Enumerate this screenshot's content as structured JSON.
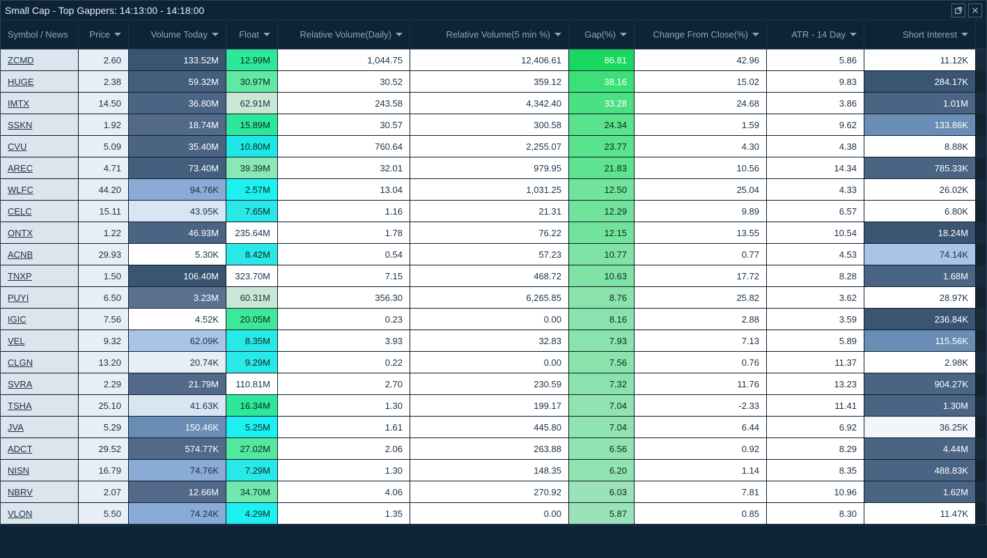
{
  "title": "Small Cap - Top Gappers: 14:13:00 - 14:18:00",
  "columns": [
    {
      "key": "symbol",
      "label": "Symbol / News",
      "align": "left",
      "sort": false
    },
    {
      "key": "price",
      "label": "Price",
      "align": "right",
      "sort": true
    },
    {
      "key": "volume",
      "label": "Volume Today",
      "align": "right",
      "sort": true
    },
    {
      "key": "float",
      "label": "Float",
      "align": "right",
      "sort": true
    },
    {
      "key": "relvol_d",
      "label": "Relative Volume(Daily)",
      "align": "right",
      "sort": true
    },
    {
      "key": "relvol_5",
      "label": "Relative Volume(5 min %)",
      "align": "right",
      "sort": true
    },
    {
      "key": "gap",
      "label": "Gap(%)",
      "align": "right",
      "sort": true
    },
    {
      "key": "change",
      "label": "Change From Close(%)",
      "align": "right",
      "sort": true
    },
    {
      "key": "atr",
      "label": "ATR - 14 Day",
      "align": "right",
      "sort": true
    },
    {
      "key": "short",
      "label": "Short Interest",
      "align": "right",
      "sort": true
    }
  ],
  "colors": {
    "price_bg": "#e8eef5",
    "price_fg": "#1a3148",
    "relvol_bg": "#ffffff",
    "relvol_fg": "#1a3148",
    "change_bg": "#ffffff",
    "change_fg": "#1a3148",
    "atr_bg": "#ffffff",
    "atr_fg": "#1a3148"
  },
  "rows": [
    {
      "symbol": "ZCMD",
      "price": "2.60",
      "volume": "133.52M",
      "volume_bg": "#3a5572",
      "volume_fg": "#ffffff",
      "float": "12.99M",
      "float_bg": "#2de89a",
      "float_fg": "#0d2b1a",
      "relvol_d": "1,044.75",
      "relvol_5": "12,406.61",
      "gap": "86.81",
      "gap_bg": "#18d85f",
      "gap_fg": "#ffffff",
      "change": "42.96",
      "atr": "5.86",
      "short": "11.12K",
      "short_bg": "#ffffff",
      "short_fg": "#1a3148"
    },
    {
      "symbol": "HUGE",
      "price": "2.38",
      "volume": "59.32M",
      "volume_bg": "#435f7d",
      "volume_fg": "#ffffff",
      "float": "30.97M",
      "float_bg": "#62e8a5",
      "float_fg": "#0d2b1a",
      "relvol_d": "30.52",
      "relvol_5": "359.12",
      "gap": "38.16",
      "gap_bg": "#3de078",
      "gap_fg": "#ffffff",
      "change": "15.02",
      "atr": "9.83",
      "short": "284.17K",
      "short_bg": "#3a5572",
      "short_fg": "#ffffff"
    },
    {
      "symbol": "IMTX",
      "price": "14.50",
      "volume": "36.80M",
      "volume_bg": "#4a6483",
      "volume_fg": "#ffffff",
      "float": "62.91M",
      "float_bg": "#c8e8d5",
      "float_fg": "#1a3148",
      "relvol_d": "243.58",
      "relvol_5": "4,342.40",
      "gap": "33.28",
      "gap_bg": "#4be082",
      "gap_fg": "#ffffff",
      "change": "24.68",
      "atr": "3.86",
      "short": "1.01M",
      "short_bg": "#4a6483",
      "short_fg": "#ffffff"
    },
    {
      "symbol": "SSKN",
      "price": "1.92",
      "volume": "18.74M",
      "volume_bg": "#52698a",
      "volume_fg": "#ffffff",
      "float": "15.89M",
      "float_bg": "#2de89a",
      "float_fg": "#0d2b1a",
      "relvol_d": "30.57",
      "relvol_5": "300.58",
      "gap": "24.34",
      "gap_bg": "#58e38c",
      "gap_fg": "#0d2b1a",
      "change": "1.59",
      "atr": "9.62",
      "short": "133.86K",
      "short_bg": "#6a8db5",
      "short_fg": "#ffffff"
    },
    {
      "symbol": "CVU",
      "price": "5.09",
      "volume": "35.40M",
      "volume_bg": "#4a6483",
      "volume_fg": "#ffffff",
      "float": "10.80M",
      "float_bg": "#1ce8e8",
      "float_fg": "#0d2b1a",
      "relvol_d": "760.64",
      "relvol_5": "2,255.07",
      "gap": "23.77",
      "gap_bg": "#58e38c",
      "gap_fg": "#0d2b1a",
      "change": "4.30",
      "atr": "4.38",
      "short": "8.88K",
      "short_bg": "#ffffff",
      "short_fg": "#1a3148"
    },
    {
      "symbol": "AREC",
      "price": "4.71",
      "volume": "73.40M",
      "volume_bg": "#435f7d",
      "volume_fg": "#ffffff",
      "float": "39.39M",
      "float_bg": "#8ae8b8",
      "float_fg": "#0d2b1a",
      "relvol_d": "32.01",
      "relvol_5": "979.95",
      "gap": "21.83",
      "gap_bg": "#5ee390",
      "gap_fg": "#0d2b1a",
      "change": "10.56",
      "atr": "14.34",
      "short": "785.33K",
      "short_bg": "#4a6483",
      "short_fg": "#ffffff"
    },
    {
      "symbol": "WLFC",
      "price": "44.20",
      "volume": "94.76K",
      "volume_bg": "#8aabd5",
      "volume_fg": "#1a3148",
      "float": "2.57M",
      "float_bg": "#1cf0f0",
      "float_fg": "#0d2b1a",
      "relvol_d": "13.04",
      "relvol_5": "1,031.25",
      "gap": "12.50",
      "gap_bg": "#72e39d",
      "gap_fg": "#0d2b1a",
      "change": "25.04",
      "atr": "4.33",
      "short": "26.02K",
      "short_bg": "#ffffff",
      "short_fg": "#1a3148"
    },
    {
      "symbol": "CELC",
      "price": "15.11",
      "volume": "43.95K",
      "volume_bg": "#d8e5f2",
      "volume_fg": "#1a3148",
      "float": "7.65M",
      "float_bg": "#28e8e8",
      "float_fg": "#0d2b1a",
      "relvol_d": "1.16",
      "relvol_5": "21.31",
      "gap": "12.29",
      "gap_bg": "#72e39d",
      "gap_fg": "#0d2b1a",
      "change": "9.89",
      "atr": "6.57",
      "short": "6.80K",
      "short_bg": "#ffffff",
      "short_fg": "#1a3148"
    },
    {
      "symbol": "ONTX",
      "price": "1.22",
      "volume": "46.93M",
      "volume_bg": "#4a6483",
      "volume_fg": "#ffffff",
      "float": "235.64M",
      "float_bg": "#ffffff",
      "float_fg": "#1a3148",
      "relvol_d": "1.78",
      "relvol_5": "76.22",
      "gap": "12.15",
      "gap_bg": "#72e39d",
      "gap_fg": "#0d2b1a",
      "change": "13.55",
      "atr": "10.54",
      "short": "18.24M",
      "short_bg": "#3a5572",
      "short_fg": "#ffffff"
    },
    {
      "symbol": "ACNB",
      "price": "29.93",
      "volume": "5.30K",
      "volume_bg": "#ffffff",
      "volume_fg": "#1a3148",
      "float": "8.42M",
      "float_bg": "#28e8e8",
      "float_fg": "#0d2b1a",
      "relvol_d": "0.54",
      "relvol_5": "57.23",
      "gap": "10.77",
      "gap_bg": "#7ee3a5",
      "gap_fg": "#0d2b1a",
      "change": "0.77",
      "atr": "4.53",
      "short": "74.14K",
      "short_bg": "#a8c5e8",
      "short_fg": "#1a3148"
    },
    {
      "symbol": "TNXP",
      "price": "1.50",
      "volume": "106.40M",
      "volume_bg": "#3a5572",
      "volume_fg": "#ffffff",
      "float": "323.70M",
      "float_bg": "#ffffff",
      "float_fg": "#1a3148",
      "relvol_d": "7.15",
      "relvol_5": "468.72",
      "gap": "10.63",
      "gap_bg": "#7ee3a5",
      "gap_fg": "#0d2b1a",
      "change": "17.72",
      "atr": "8.28",
      "short": "1.68M",
      "short_bg": "#4a6483",
      "short_fg": "#ffffff"
    },
    {
      "symbol": "PUYI",
      "price": "6.50",
      "volume": "3.23M",
      "volume_bg": "#5a7290",
      "volume_fg": "#ffffff",
      "float": "60.31M",
      "float_bg": "#c8e8d5",
      "float_fg": "#1a3148",
      "relvol_d": "356.30",
      "relvol_5": "6,265.85",
      "gap": "8.76",
      "gap_bg": "#8ae3ad",
      "gap_fg": "#0d2b1a",
      "change": "25.82",
      "atr": "3.62",
      "short": "28.97K",
      "short_bg": "#ffffff",
      "short_fg": "#1a3148"
    },
    {
      "symbol": "IGIC",
      "price": "7.56",
      "volume": "4.52K",
      "volume_bg": "#ffffff",
      "volume_fg": "#1a3148",
      "float": "20.05M",
      "float_bg": "#3de89a",
      "float_fg": "#0d2b1a",
      "relvol_d": "0.23",
      "relvol_5": "0.00",
      "gap": "8.16",
      "gap_bg": "#8ae3ad",
      "gap_fg": "#0d2b1a",
      "change": "2.88",
      "atr": "3.59",
      "short": "236.84K",
      "short_bg": "#3a5572",
      "short_fg": "#ffffff"
    },
    {
      "symbol": "VEL",
      "price": "9.32",
      "volume": "62.09K",
      "volume_bg": "#a8c5e8",
      "volume_fg": "#1a3148",
      "float": "8.35M",
      "float_bg": "#28e8e8",
      "float_fg": "#0d2b1a",
      "relvol_d": "3.93",
      "relvol_5": "32.83",
      "gap": "7.93",
      "gap_bg": "#8ae3ad",
      "gap_fg": "#0d2b1a",
      "change": "7.13",
      "atr": "5.89",
      "short": "115.56K",
      "short_bg": "#6a8db5",
      "short_fg": "#ffffff"
    },
    {
      "symbol": "CLGN",
      "price": "13.20",
      "volume": "20.74K",
      "volume_bg": "#e8eef5",
      "volume_fg": "#1a3148",
      "float": "9.29M",
      "float_bg": "#28e8e8",
      "float_fg": "#0d2b1a",
      "relvol_d": "0.22",
      "relvol_5": "0.00",
      "gap": "7.56",
      "gap_bg": "#8ae3ad",
      "gap_fg": "#0d2b1a",
      "change": "0.76",
      "atr": "11.37",
      "short": "2.98K",
      "short_bg": "#ffffff",
      "short_fg": "#1a3148"
    },
    {
      "symbol": "SVRA",
      "price": "2.29",
      "volume": "21.79M",
      "volume_bg": "#52698a",
      "volume_fg": "#ffffff",
      "float": "110.81M",
      "float_bg": "#ffffff",
      "float_fg": "#1a3148",
      "relvol_d": "2.70",
      "relvol_5": "230.59",
      "gap": "7.32",
      "gap_bg": "#8ae3ad",
      "gap_fg": "#0d2b1a",
      "change": "11.76",
      "atr": "13.23",
      "short": "904.27K",
      "short_bg": "#4a6483",
      "short_fg": "#ffffff"
    },
    {
      "symbol": "TSHA",
      "price": "25.10",
      "volume": "41.63K",
      "volume_bg": "#d8e5f2",
      "volume_fg": "#1a3148",
      "float": "16.34M",
      "float_bg": "#2de89a",
      "float_fg": "#0d2b1a",
      "relvol_d": "1.30",
      "relvol_5": "199.17",
      "gap": "7.04",
      "gap_bg": "#92e3b2",
      "gap_fg": "#0d2b1a",
      "change": "-2.33",
      "atr": "11.41",
      "short": "1.30M",
      "short_bg": "#4a6483",
      "short_fg": "#ffffff"
    },
    {
      "symbol": "JVA",
      "price": "5.29",
      "volume": "150.46K",
      "volume_bg": "#6a8db5",
      "volume_fg": "#ffffff",
      "float": "5.25M",
      "float_bg": "#1cf0f0",
      "float_fg": "#0d2b1a",
      "relvol_d": "1.61",
      "relvol_5": "445.80",
      "gap": "7.04",
      "gap_bg": "#92e3b2",
      "gap_fg": "#0d2b1a",
      "change": "6.44",
      "atr": "6.92",
      "short": "36.25K",
      "short_bg": "#f2f6fb",
      "short_fg": "#1a3148"
    },
    {
      "symbol": "ADCT",
      "price": "29.52",
      "volume": "574.77K",
      "volume_bg": "#52698a",
      "volume_fg": "#ffffff",
      "float": "27.02M",
      "float_bg": "#52e8a0",
      "float_fg": "#0d2b1a",
      "relvol_d": "2.06",
      "relvol_5": "263.88",
      "gap": "6.56",
      "gap_bg": "#92e3b2",
      "gap_fg": "#0d2b1a",
      "change": "0.92",
      "atr": "8.29",
      "short": "4.44M",
      "short_bg": "#4a6483",
      "short_fg": "#ffffff"
    },
    {
      "symbol": "NISN",
      "price": "16.79",
      "volume": "74.76K",
      "volume_bg": "#8aabd5",
      "volume_fg": "#1a3148",
      "float": "7.29M",
      "float_bg": "#28e8e8",
      "float_fg": "#0d2b1a",
      "relvol_d": "1.30",
      "relvol_5": "148.35",
      "gap": "6.20",
      "gap_bg": "#92e3b2",
      "gap_fg": "#0d2b1a",
      "change": "1.14",
      "atr": "8.35",
      "short": "488.83K",
      "short_bg": "#4a6483",
      "short_fg": "#ffffff"
    },
    {
      "symbol": "NBRV",
      "price": "2.07",
      "volume": "12.66M",
      "volume_bg": "#52698a",
      "volume_fg": "#ffffff",
      "float": "34.70M",
      "float_bg": "#72e8ad",
      "float_fg": "#0d2b1a",
      "relvol_d": "4.06",
      "relvol_5": "270.92",
      "gap": "6.03",
      "gap_bg": "#9ae3b8",
      "gap_fg": "#0d2b1a",
      "change": "7.81",
      "atr": "10.96",
      "short": "1.62M",
      "short_bg": "#4a6483",
      "short_fg": "#ffffff"
    },
    {
      "symbol": "VLON",
      "price": "5.50",
      "volume": "74.24K",
      "volume_bg": "#8aabd5",
      "volume_fg": "#1a3148",
      "float": "4.29M",
      "float_bg": "#1cf0f0",
      "float_fg": "#0d2b1a",
      "relvol_d": "1.35",
      "relvol_5": "0.00",
      "gap": "5.87",
      "gap_bg": "#9ae3b8",
      "gap_fg": "#0d2b1a",
      "change": "0.85",
      "atr": "8.30",
      "short": "11.47K",
      "short_bg": "#ffffff",
      "short_fg": "#1a3148"
    }
  ]
}
